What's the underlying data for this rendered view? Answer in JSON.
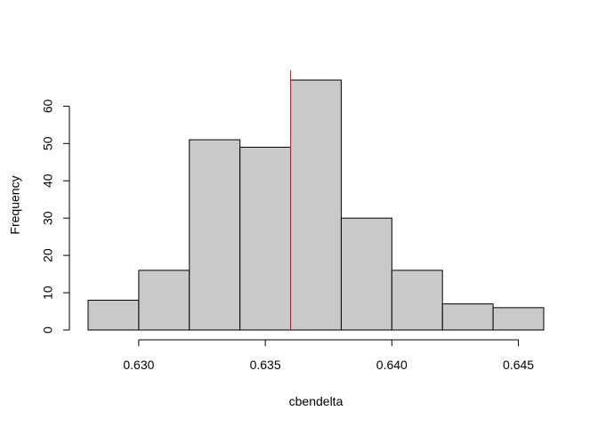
{
  "chart_data": {
    "type": "bar",
    "title": "",
    "xlabel": "cbendelta",
    "ylabel": "Frequency",
    "bins": [
      {
        "x0": 0.628,
        "x1": 0.63,
        "count": 8
      },
      {
        "x0": 0.63,
        "x1": 0.632,
        "count": 16
      },
      {
        "x0": 0.632,
        "x1": 0.634,
        "count": 51
      },
      {
        "x0": 0.634,
        "x1": 0.636,
        "count": 49
      },
      {
        "x0": 0.636,
        "x1": 0.638,
        "count": 67
      },
      {
        "x0": 0.638,
        "x1": 0.64,
        "count": 30
      },
      {
        "x0": 0.64,
        "x1": 0.642,
        "count": 16
      },
      {
        "x0": 0.642,
        "x1": 0.644,
        "count": 7
      },
      {
        "x0": 0.644,
        "x1": 0.646,
        "count": 6
      }
    ],
    "xticks": [
      0.63,
      0.635,
      0.64,
      0.645
    ],
    "xtick_labels": [
      "0.630",
      "0.635",
      "0.640",
      "0.645"
    ],
    "yticks": [
      0,
      10,
      20,
      30,
      40,
      50,
      60
    ],
    "ytick_labels": [
      "0",
      "10",
      "20",
      "30",
      "40",
      "50",
      "60"
    ],
    "xlim": [
      0.628,
      0.646
    ],
    "ylim": [
      0,
      67
    ],
    "reference_line": {
      "x": 0.636,
      "color": "#e31a1c"
    },
    "bar_fill": "#c9c9c9",
    "bar_stroke": "#000000",
    "grid": false,
    "legend": "none"
  }
}
